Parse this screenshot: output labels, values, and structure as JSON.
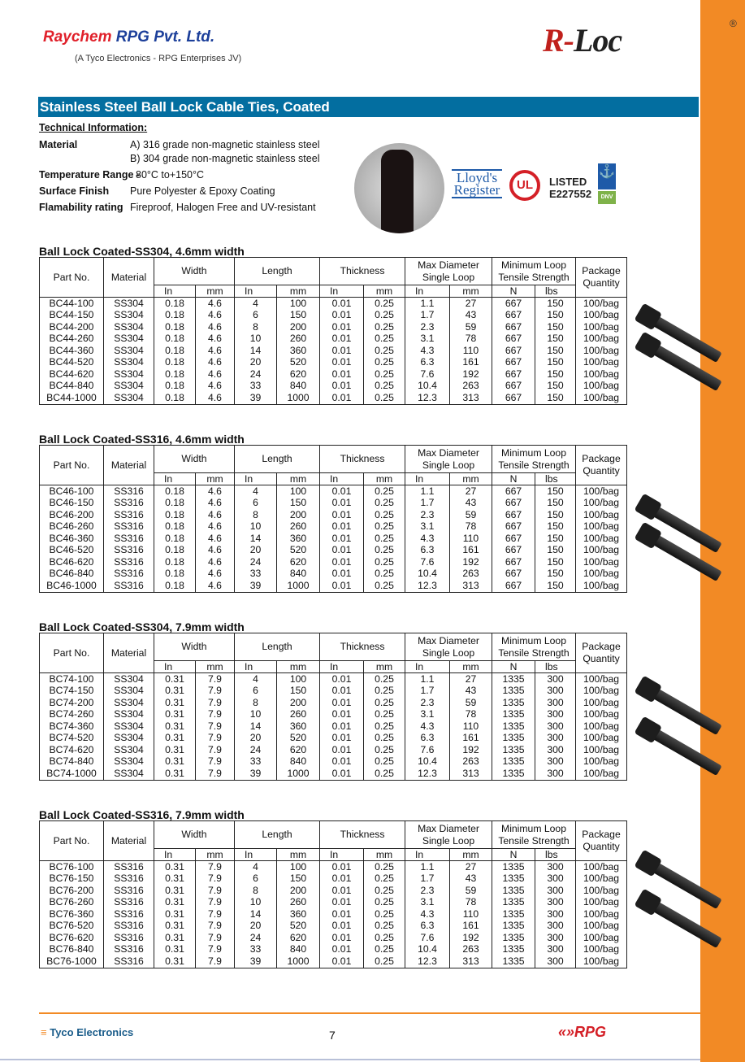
{
  "header": {
    "company": "Raychem",
    "company2": "RPG Pvt. Ltd.",
    "subtitle": "(A Tyco Electronics - RPG Enterprises JV)",
    "brand_r": "R-",
    "brand_rest": "Loc",
    "registered": "®"
  },
  "banner": "Stainless Steel Ball Lock Cable Ties, Coated",
  "tech": {
    "heading": "Technical Information:",
    "items": [
      {
        "label": "Material",
        "value": "A) 316 grade non-magnetic stainless steel",
        "value2": "B) 304 grade non-magnetic stainless steel"
      },
      {
        "label": "Temperature Range -",
        "value": "80°C to+150°C"
      },
      {
        "label": "Surface Finish",
        "value": "Pure Polyester & Epoxy Coating"
      },
      {
        "label": "Flamability rating",
        "value": "Fireproof, Halogen Free and UV-resistant"
      }
    ]
  },
  "certs": {
    "lloyds1": "Lloyd's",
    "lloyds2": "Register",
    "ul": "UL",
    "listed": "LISTED",
    "listed_no": "E227552",
    "dnv": "DNV"
  },
  "columns": {
    "part": "Part No.",
    "material": "Material",
    "width": "Width",
    "length": "Length",
    "thickness": "Thickness",
    "maxdia1": "Max Diameter",
    "maxdia2": "Single Loop",
    "tensile1": "Minimum Loop",
    "tensile2": "Tensile Strength",
    "package1": "Package",
    "package2": "Quantity",
    "in": "In",
    "mm": "mm",
    "n": "N",
    "lbs": "lbs"
  },
  "tables": [
    {
      "title": "Ball Lock Coated-SS304, 4.6mm width",
      "rows": [
        [
          "BC44-100",
          "SS304",
          "0.18",
          "4.6",
          "4",
          "100",
          "0.01",
          "0.25",
          "1.1",
          "27",
          "667",
          "150",
          "100/bag"
        ],
        [
          "BC44-150",
          "SS304",
          "0.18",
          "4.6",
          "6",
          "150",
          "0.01",
          "0.25",
          "1.7",
          "43",
          "667",
          "150",
          "100/bag"
        ],
        [
          "BC44-200",
          "SS304",
          "0.18",
          "4.6",
          "8",
          "200",
          "0.01",
          "0.25",
          "2.3",
          "59",
          "667",
          "150",
          "100/bag"
        ],
        [
          "BC44-260",
          "SS304",
          "0.18",
          "4.6",
          "10",
          "260",
          "0.01",
          "0.25",
          "3.1",
          "78",
          "667",
          "150",
          "100/bag"
        ],
        [
          "BC44-360",
          "SS304",
          "0.18",
          "4.6",
          "14",
          "360",
          "0.01",
          "0.25",
          "4.3",
          "110",
          "667",
          "150",
          "100/bag"
        ],
        [
          "BC44-520",
          "SS304",
          "0.18",
          "4.6",
          "20",
          "520",
          "0.01",
          "0.25",
          "6.3",
          "161",
          "667",
          "150",
          "100/bag"
        ],
        [
          "BC44-620",
          "SS304",
          "0.18",
          "4.6",
          "24",
          "620",
          "0.01",
          "0.25",
          "7.6",
          "192",
          "667",
          "150",
          "100/bag"
        ],
        [
          "BC44-840",
          "SS304",
          "0.18",
          "4.6",
          "33",
          "840",
          "0.01",
          "0.25",
          "10.4",
          "263",
          "667",
          "150",
          "100/bag"
        ],
        [
          "BC44-1000",
          "SS304",
          "0.18",
          "4.6",
          "39",
          "1000",
          "0.01",
          "0.25",
          "12.3",
          "313",
          "667",
          "150",
          "100/bag"
        ]
      ]
    },
    {
      "title": "Ball Lock Coated-SS316, 4.6mm width",
      "rows": [
        [
          "BC46-100",
          "SS316",
          "0.18",
          "4.6",
          "4",
          "100",
          "0.01",
          "0.25",
          "1.1",
          "27",
          "667",
          "150",
          "100/bag"
        ],
        [
          "BC46-150",
          "SS316",
          "0.18",
          "4.6",
          "6",
          "150",
          "0.01",
          "0.25",
          "1.7",
          "43",
          "667",
          "150",
          "100/bag"
        ],
        [
          "BC46-200",
          "SS316",
          "0.18",
          "4.6",
          "8",
          "200",
          "0.01",
          "0.25",
          "2.3",
          "59",
          "667",
          "150",
          "100/bag"
        ],
        [
          "BC46-260",
          "SS316",
          "0.18",
          "4.6",
          "10",
          "260",
          "0.01",
          "0.25",
          "3.1",
          "78",
          "667",
          "150",
          "100/bag"
        ],
        [
          "BC46-360",
          "SS316",
          "0.18",
          "4.6",
          "14",
          "360",
          "0.01",
          "0.25",
          "4.3",
          "110",
          "667",
          "150",
          "100/bag"
        ],
        [
          "BC46-520",
          "SS316",
          "0.18",
          "4.6",
          "20",
          "520",
          "0.01",
          "0.25",
          "6.3",
          "161",
          "667",
          "150",
          "100/bag"
        ],
        [
          "BC46-620",
          "SS316",
          "0.18",
          "4.6",
          "24",
          "620",
          "0.01",
          "0.25",
          "7.6",
          "192",
          "667",
          "150",
          "100/bag"
        ],
        [
          "BC46-840",
          "SS316",
          "0.18",
          "4.6",
          "33",
          "840",
          "0.01",
          "0.25",
          "10.4",
          "263",
          "667",
          "150",
          "100/bag"
        ],
        [
          "BC46-1000",
          "SS316",
          "0.18",
          "4.6",
          "39",
          "1000",
          "0.01",
          "0.25",
          "12.3",
          "313",
          "667",
          "150",
          "100/bag"
        ]
      ]
    },
    {
      "title": "Ball Lock Coated-SS304, 7.9mm width",
      "rows": [
        [
          "BC74-100",
          "SS304",
          "0.31",
          "7.9",
          "4",
          "100",
          "0.01",
          "0.25",
          "1.1",
          "27",
          "1335",
          "300",
          "100/bag"
        ],
        [
          "BC74-150",
          "SS304",
          "0.31",
          "7.9",
          "6",
          "150",
          "0.01",
          "0.25",
          "1.7",
          "43",
          "1335",
          "300",
          "100/bag"
        ],
        [
          "BC74-200",
          "SS304",
          "0.31",
          "7.9",
          "8",
          "200",
          "0.01",
          "0.25",
          "2.3",
          "59",
          "1335",
          "300",
          "100/bag"
        ],
        [
          "BC74-260",
          "SS304",
          "0.31",
          "7.9",
          "10",
          "260",
          "0.01",
          "0.25",
          "3.1",
          "78",
          "1335",
          "300",
          "100/bag"
        ],
        [
          "BC74-360",
          "SS304",
          "0.31",
          "7.9",
          "14",
          "360",
          "0.01",
          "0.25",
          "4.3",
          "110",
          "1335",
          "300",
          "100/bag"
        ],
        [
          "BC74-520",
          "SS304",
          "0.31",
          "7.9",
          "20",
          "520",
          "0.01",
          "0.25",
          "6.3",
          "161",
          "1335",
          "300",
          "100/bag"
        ],
        [
          "BC74-620",
          "SS304",
          "0.31",
          "7.9",
          "24",
          "620",
          "0.01",
          "0.25",
          "7.6",
          "192",
          "1335",
          "300",
          "100/bag"
        ],
        [
          "BC74-840",
          "SS304",
          "0.31",
          "7.9",
          "33",
          "840",
          "0.01",
          "0.25",
          "10.4",
          "263",
          "1335",
          "300",
          "100/bag"
        ],
        [
          "BC74-1000",
          "SS304",
          "0.31",
          "7.9",
          "39",
          "1000",
          "0.01",
          "0.25",
          "12.3",
          "313",
          "1335",
          "300",
          "100/bag"
        ]
      ]
    },
    {
      "title": "Ball Lock Coated-SS316, 7.9mm width",
      "rows": [
        [
          "BC76-100",
          "SS316",
          "0.31",
          "7.9",
          "4",
          "100",
          "0.01",
          "0.25",
          "1.1",
          "27",
          "1335",
          "300",
          "100/bag"
        ],
        [
          "BC76-150",
          "SS316",
          "0.31",
          "7.9",
          "6",
          "150",
          "0.01",
          "0.25",
          "1.7",
          "43",
          "1335",
          "300",
          "100/bag"
        ],
        [
          "BC76-200",
          "SS316",
          "0.31",
          "7.9",
          "8",
          "200",
          "0.01",
          "0.25",
          "2.3",
          "59",
          "1335",
          "300",
          "100/bag"
        ],
        [
          "BC76-260",
          "SS316",
          "0.31",
          "7.9",
          "10",
          "260",
          "0.01",
          "0.25",
          "3.1",
          "78",
          "1335",
          "300",
          "100/bag"
        ],
        [
          "BC76-360",
          "SS316",
          "0.31",
          "7.9",
          "14",
          "360",
          "0.01",
          "0.25",
          "4.3",
          "110",
          "1335",
          "300",
          "100/bag"
        ],
        [
          "BC76-520",
          "SS316",
          "0.31",
          "7.9",
          "20",
          "520",
          "0.01",
          "0.25",
          "6.3",
          "161",
          "1335",
          "300",
          "100/bag"
        ],
        [
          "BC76-620",
          "SS316",
          "0.31",
          "7.9",
          "24",
          "620",
          "0.01",
          "0.25",
          "7.6",
          "192",
          "1335",
          "300",
          "100/bag"
        ],
        [
          "BC76-840",
          "SS316",
          "0.31",
          "7.9",
          "33",
          "840",
          "0.01",
          "0.25",
          "10.4",
          "263",
          "1335",
          "300",
          "100/bag"
        ],
        [
          "BC76-1000",
          "SS316",
          "0.31",
          "7.9",
          "39",
          "1000",
          "0.01",
          "0.25",
          "12.3",
          "313",
          "1335",
          "300",
          "100/bag"
        ]
      ]
    }
  ],
  "footer": {
    "tyco": "Tyco Electronics",
    "page": "7",
    "rpg": "RPG"
  },
  "colors": {
    "banner": "#036ea0",
    "accent": "#f28a25"
  }
}
